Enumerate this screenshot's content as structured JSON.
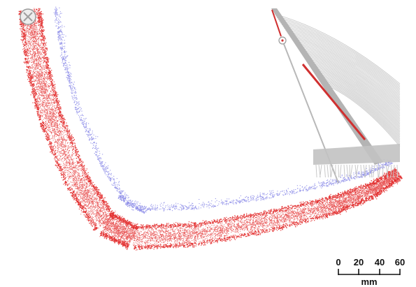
{
  "image": {
    "description_colors": {
      "point_cloud_primary": "#e01818",
      "point_cloud_secondary": "#3a3ad8",
      "structure": "#b4b4b4",
      "structure_highlight": "#d03030"
    }
  },
  "scale_bar": {
    "ticks": [
      "0",
      "20",
      "40",
      "60"
    ],
    "unit": "mm"
  }
}
